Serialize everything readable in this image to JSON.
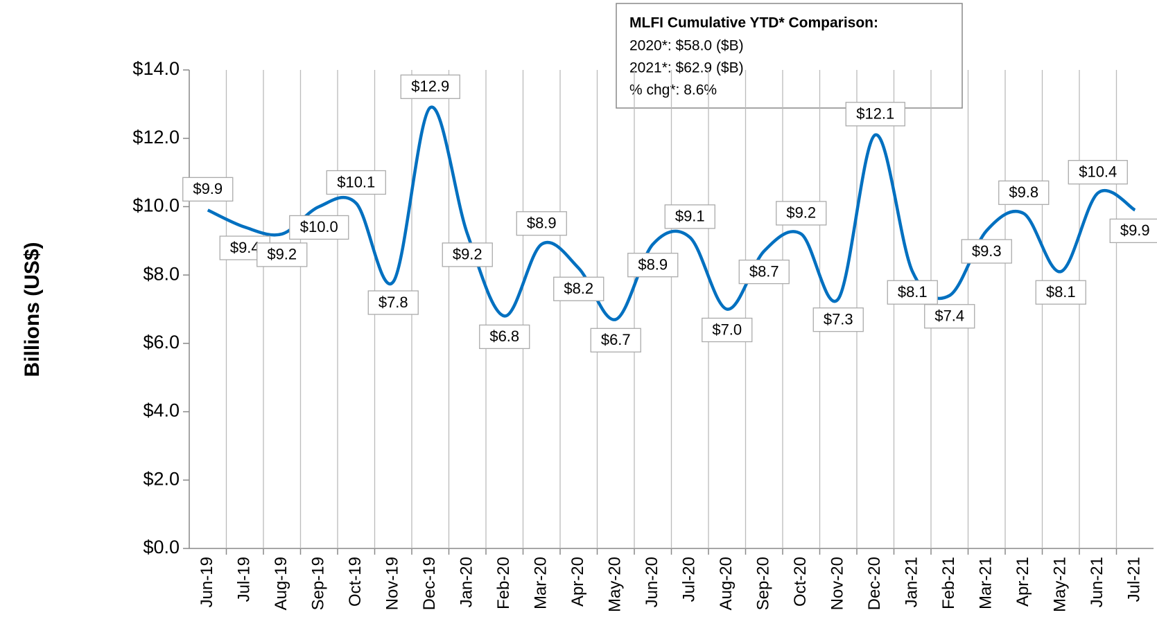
{
  "chart_data": {
    "type": "line",
    "y_label": "Billions (US$)",
    "annotation": {
      "title": "MLFI Cumulative YTD* Comparison:",
      "lines": [
        "2020*: $58.0 ($B)",
        "2021*: $62.9 ($B)",
        "% chg*:  8.6%"
      ]
    },
    "categories": [
      "Jun-19",
      "Jul-19",
      "Aug-19",
      "Sep-19",
      "Oct-19",
      "Nov-19",
      "Dec-19",
      "Jan-20",
      "Feb-20",
      "Mar-20",
      "Apr-20",
      "May-20",
      "Jun-20",
      "Jul-20",
      "Aug-20",
      "Sep-20",
      "Oct-20",
      "Nov-20",
      "Dec-20",
      "Jan-21",
      "Feb-21",
      "Mar-21",
      "Apr-21",
      "May-21",
      "Jun-21",
      "Jul-21"
    ],
    "series": [
      {
        "name": "MLFI",
        "color": "#0070c0",
        "values": [
          9.9,
          9.4,
          9.2,
          10.0,
          10.1,
          7.8,
          12.9,
          9.2,
          6.8,
          8.9,
          8.2,
          6.7,
          8.9,
          9.1,
          7.0,
          8.7,
          9.2,
          7.3,
          12.1,
          8.1,
          7.4,
          9.3,
          9.8,
          8.1,
          10.4,
          9.9
        ],
        "value_labels": [
          "$9.9",
          "$9.4",
          "$9.2",
          "$10.0",
          "$10.1",
          "$7.8",
          "$12.9",
          "$9.2",
          "$6.8",
          "$8.9",
          "$8.2",
          "$6.7",
          "$8.9",
          "$9.1",
          "$7.0",
          "$8.7",
          "$9.2",
          "$7.3",
          "$12.1",
          "$8.1",
          "$7.4",
          "$9.3",
          "$9.8",
          "$8.1",
          "$10.4",
          "$9.9"
        ]
      }
    ],
    "ylim": [
      0,
      14
    ],
    "yticks": [
      {
        "value": 0,
        "label": "$0.0"
      },
      {
        "value": 2,
        "label": "$2.0"
      },
      {
        "value": 4,
        "label": "$4.0"
      },
      {
        "value": 6,
        "label": "$6.0"
      },
      {
        "value": 8,
        "label": "$8.0"
      },
      {
        "value": 10,
        "label": "$10.0"
      },
      {
        "value": 12,
        "label": "$12.0"
      },
      {
        "value": 14,
        "label": "$14.0"
      }
    ],
    "grid": true
  }
}
